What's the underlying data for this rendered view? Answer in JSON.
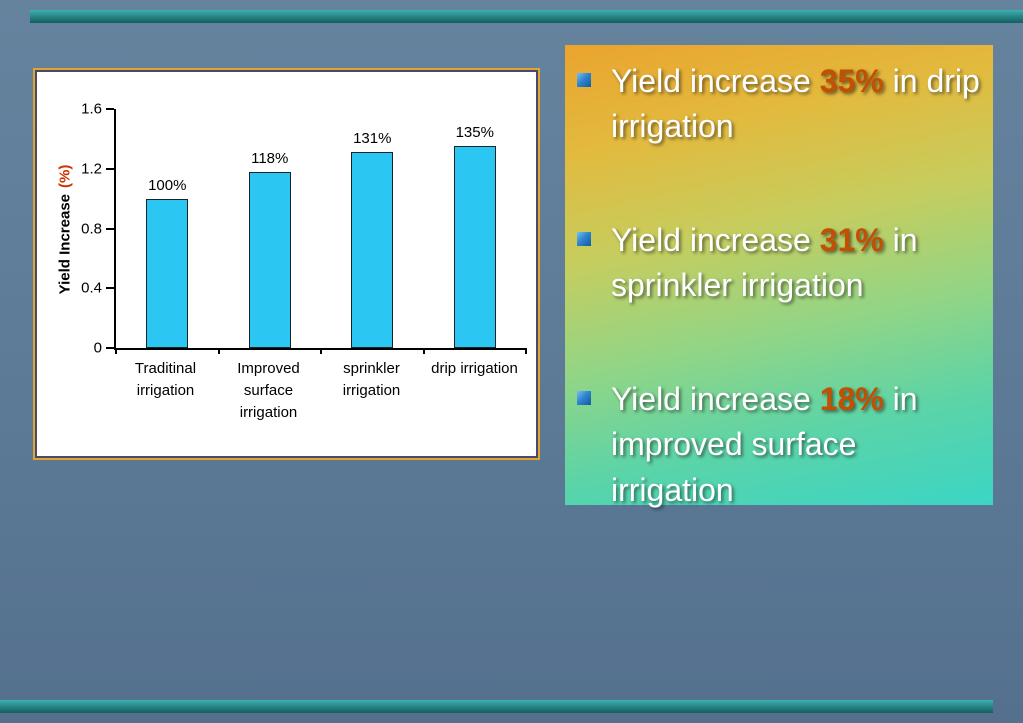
{
  "slide": {
    "bullets": [
      {
        "prefix": "Yield increase ",
        "highlight": "35%",
        "suffix": " in drip irrigation"
      },
      {
        "prefix": "Yield increase ",
        "highlight": "31%",
        "suffix": " in sprinkler irrigation"
      },
      {
        "prefix": "Yield increase ",
        "highlight": "18%",
        "suffix": " in improved surface irrigation"
      }
    ],
    "colors": {
      "highlight_text": "#c35000",
      "bullet_square": "#2e86d0",
      "accent_bar": "#258183",
      "panel_border": "#e2a42b",
      "background": "#5e7c98"
    }
  },
  "chart_data": {
    "type": "bar",
    "title": "",
    "categories": [
      "Traditinal irrigation",
      "Improved surface irrigation",
      "sprinkler irrigation",
      "drip irrigation"
    ],
    "values": [
      1.0,
      1.18,
      1.31,
      1.35
    ],
    "data_labels": [
      "100%",
      "118%",
      "131%",
      "135%"
    ],
    "ylabel": "Yield Increase (%)",
    "ylabel_main": "Yield Increase",
    "ylabel_unit": "(%)",
    "yticks": [
      0,
      0.4,
      0.8,
      1.2,
      1.6
    ],
    "ytick_labels": [
      "0",
      "0.4",
      "0.8",
      "1.2",
      "1.6"
    ],
    "ylim": [
      0,
      1.6
    ],
    "bar_color": "#2cc6f2",
    "grid": false,
    "legend": false
  }
}
